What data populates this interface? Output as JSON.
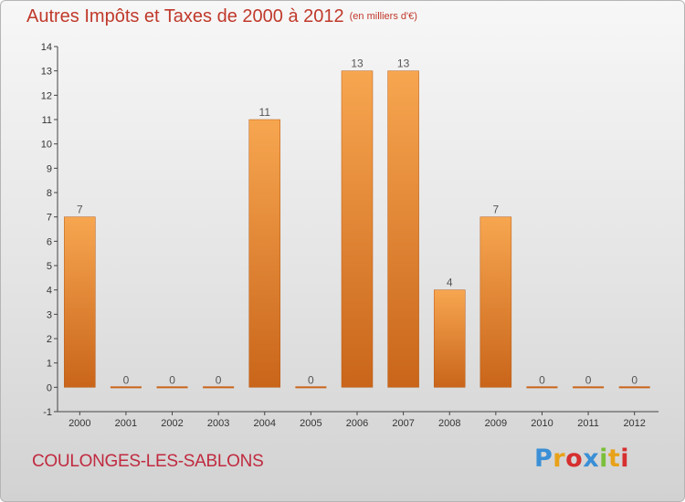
{
  "header": {
    "title": "Autres Impôts et Taxes de 2000 à 2012",
    "unit": "(en milliers d'€)"
  },
  "footer": {
    "commune": "COULONGES-LES-SABLONS",
    "logo_text": "Proxiti",
    "logo_colors": [
      "#3a8fd6",
      "#e8a219",
      "#d62f2f",
      "#3a8fd6",
      "#7bbf3a",
      "#e8a219",
      "#d62f2f"
    ]
  },
  "colors": {
    "bar_top": "#f7a650",
    "bar_bottom": "#c9651a",
    "title": "#c0392b",
    "commune": "#c02a3f"
  },
  "chart_data": {
    "type": "bar",
    "title": "Autres Impôts et Taxes de 2000 à 2012",
    "subtitle": "(en milliers d'€)",
    "xlabel": "",
    "ylabel": "",
    "categories": [
      "2000",
      "2001",
      "2002",
      "2003",
      "2004",
      "2005",
      "2006",
      "2007",
      "2008",
      "2009",
      "2010",
      "2011",
      "2012"
    ],
    "values": [
      7,
      0,
      0,
      0,
      11,
      0,
      13,
      13,
      4,
      7,
      0,
      0,
      0
    ],
    "data_labels": [
      "7",
      "0",
      "0",
      "0",
      "11",
      "0",
      "13",
      "13",
      "4",
      "7",
      "0",
      "0",
      "0"
    ],
    "ylim": [
      -1,
      14
    ],
    "yticks": [
      -1,
      0,
      1,
      2,
      3,
      4,
      5,
      6,
      7,
      8,
      9,
      10,
      11,
      12,
      13,
      14
    ],
    "grid": false,
    "legend": "none"
  }
}
